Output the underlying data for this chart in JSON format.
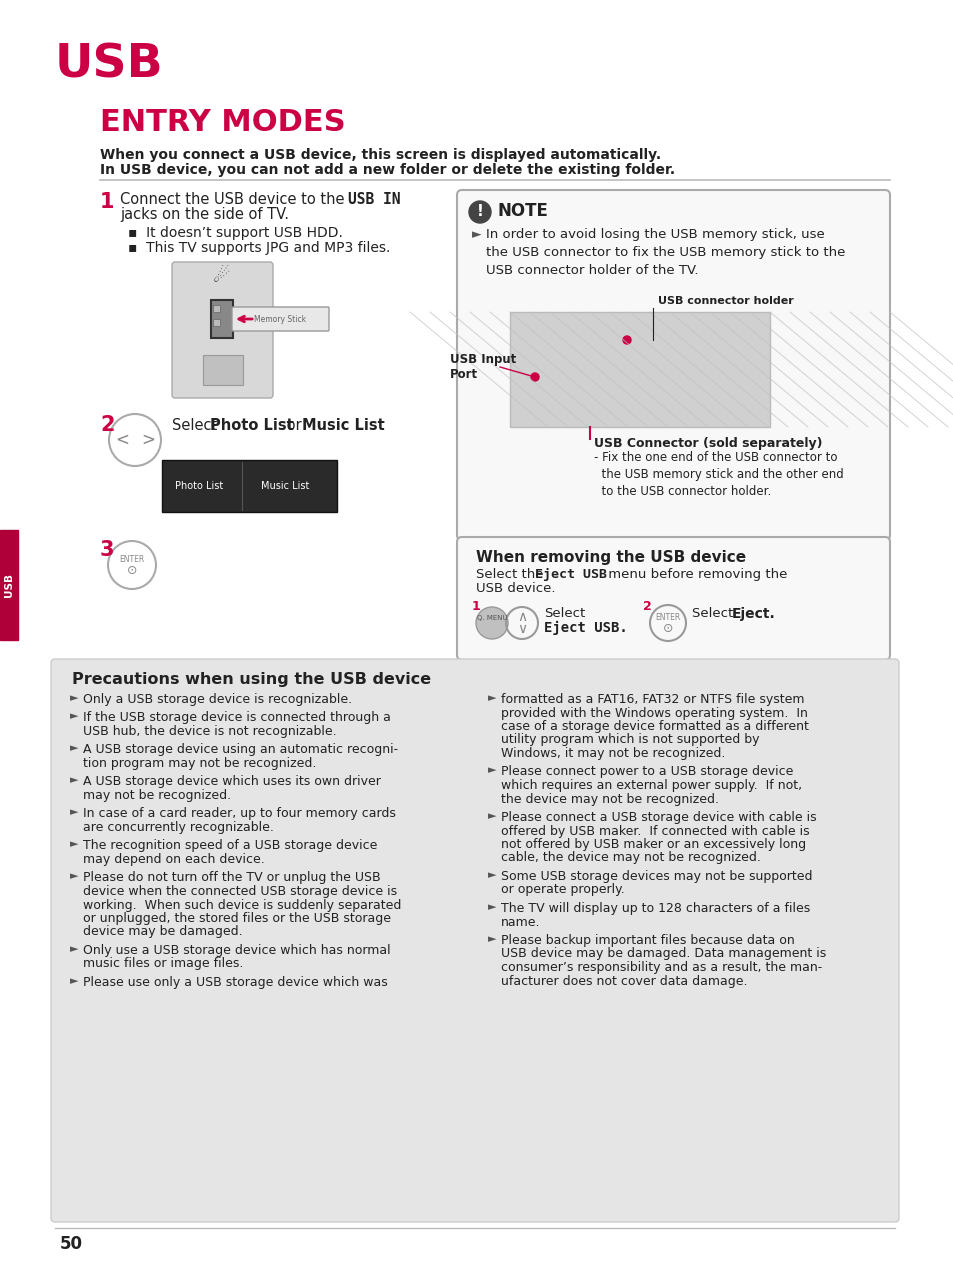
{
  "page_bg": "#ffffff",
  "accent_color": "#cc0044",
  "text_color": "#222222",
  "sidebar_color": "#b0003a",
  "gray_bg": "#e5e5e5",
  "note_box_bg": "#f5f5f5",
  "note_box_border": "#aaaaaa",
  "title_usb": "USB",
  "title_entry": "ENTRY MODES",
  "subtitle1": "When you connect a USB device, this screen is displayed automatically.",
  "subtitle2": "In USB device, you can not add a new folder or delete the existing folder.",
  "page_number": "50",
  "precautions_title": "Precautions when using the USB device",
  "precautions_left": [
    "Only a USB storage device is recognizable.",
    "If the USB storage device is connected through a\nUSB hub, the device is not recognizable.",
    "A USB storage device using an automatic recogni-\ntion program may not be recognized.",
    "A USB storage device which uses its own driver\nmay not be recognized.",
    "In case of a card reader, up to four memory cards\nare concurrently recognizable.",
    "The recognition speed of a USB storage device\nmay depend on each device.",
    "Please do not turn off the TV or unplug the USB\ndevice when the connected USB storage device is\nworking.  When such device is suddenly separated\nor unplugged, the stored files or the USB storage\ndevice may be damaged.",
    "Only use a USB storage device which has normal\nmusic files or image files.",
    "Please use only a USB storage device which was"
  ],
  "precautions_right": [
    "formatted as a FAT16, FAT32 or NTFS file system\nprovided with the Windows operating system.  In\ncase of a storage device formatted as a different\nutility program which is not supported by\nWindows, it may not be recognized.",
    "Please connect power to a USB storage device\nwhich requires an external power supply.  If not,\nthe device may not be recognized.",
    "Please connect a USB storage device with cable is\noffered by USB maker.  If connected with cable is\nnot offered by USB maker or an excessively long\ncable, the device may not be recognized.",
    "Some USB storage devices may not be supported\nor operate properly.",
    "The TV will display up to 128 characters of a files\nname.",
    "Please backup important files because data on\nUSB device may be damaged. Data management is\nconsumer’s responsibility and as a result, the man-\nufacturer does not cover data damage."
  ]
}
